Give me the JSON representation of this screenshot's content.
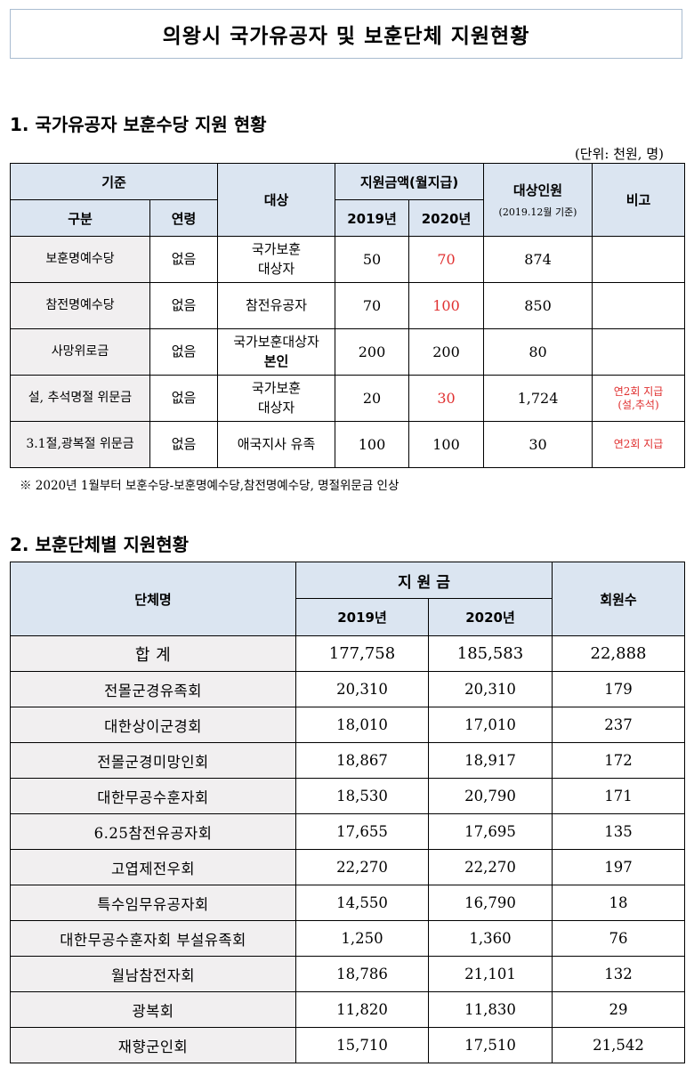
{
  "title": "의왕시 국가유공자 및 보훈단체 지원현황",
  "section1": {
    "heading": "1. 국가유공자 보훈수당 지원 현황",
    "unit": "(단위: 천원, 명)",
    "headers": {
      "criteria": "기준",
      "category": "구분",
      "age": "연령",
      "target": "대상",
      "amount": "지원금액(월지급)",
      "y2019": "2019년",
      "y2020": "2020년",
      "recipients": "대상인원",
      "recipients_note": "(2019.12월 기준)",
      "remarks": "비고"
    },
    "rows": [
      {
        "category": "보훈명예수당",
        "age": "없음",
        "target": [
          "국가보훈",
          "대상자"
        ],
        "y2019": "50",
        "y2020": "70",
        "recipients": "874",
        "remarks": [
          "",
          ""
        ]
      },
      {
        "category": "참전명예수당",
        "age": "없음",
        "target": [
          "참전유공자",
          ""
        ],
        "y2019": "70",
        "y2020": "100",
        "recipients": "850",
        "remarks": [
          "",
          ""
        ]
      },
      {
        "category": "사망위로금",
        "age": "없음",
        "target": [
          "국가보훈대상자",
          "본인"
        ],
        "y2019": "200",
        "y2020": "200",
        "recipients": "80",
        "remarks": [
          "",
          ""
        ]
      },
      {
        "category": "설, 추석명절 위문금",
        "age": "없음",
        "target": [
          "국가보훈",
          "대상자"
        ],
        "y2019": "20",
        "y2020": "30",
        "recipients": "1,724",
        "remarks": [
          "연2회 지급",
          "(설,추석)"
        ]
      },
      {
        "category": "3.1절,광복절 위문금",
        "age": "없음",
        "target": [
          "애국지사 유족",
          ""
        ],
        "y2019": "100",
        "y2020": "100",
        "recipients": "30",
        "remarks": [
          "연2회 지급",
          ""
        ]
      }
    ],
    "footnote": "※  2020년 1월부터   보훈수당-보훈명예수당,참전명예수당, 명절위문금 인상"
  },
  "section2": {
    "heading": "2. 보훈단체별 지원현황",
    "headers": {
      "org": "단체명",
      "support": "지 원 금",
      "y2019": "2019년",
      "y2020": "2020년",
      "members": "회원수"
    },
    "rows": [
      {
        "name": "합 계",
        "y2019": "177,758",
        "y2020": "185,583",
        "members": "22,888"
      },
      {
        "name": "전몰군경유족회",
        "y2019": "20,310",
        "y2020": "20,310",
        "members": "179"
      },
      {
        "name": "대한상이군경회",
        "y2019": "18,010",
        "y2020": "17,010",
        "members": "237"
      },
      {
        "name": "전몰군경미망인회",
        "y2019": "18,867",
        "y2020": "18,917",
        "members": "172"
      },
      {
        "name": "대한무공수훈자회",
        "y2019": "18,530",
        "y2020": "20,790",
        "members": "171"
      },
      {
        "name": "6.25참전유공자회",
        "y2019": "17,655",
        "y2020": "17,695",
        "members": "135"
      },
      {
        "name": "고엽제전우회",
        "y2019": "22,270",
        "y2020": "22,270",
        "members": "197"
      },
      {
        "name": "특수임무유공자회",
        "y2019": "14,550",
        "y2020": "16,790",
        "members": "18"
      },
      {
        "name": "대한무공수훈자회 부설유족회",
        "y2019": "1,250",
        "y2020": "1,360",
        "members": "76"
      },
      {
        "name": "월남참전자회",
        "y2019": "18,786",
        "y2020": "21,101",
        "members": "132"
      },
      {
        "name": "광복회",
        "y2019": "11,820",
        "y2020": "11,830",
        "members": "29"
      },
      {
        "name": "재향군인회",
        "y2019": "15,710",
        "y2020": "17,510",
        "members": "21,542"
      }
    ]
  },
  "colors": {
    "header_bg": "#dbe5f1",
    "category_bg": "#f1eff0",
    "highlight": "#e03030",
    "border": "#000000"
  }
}
